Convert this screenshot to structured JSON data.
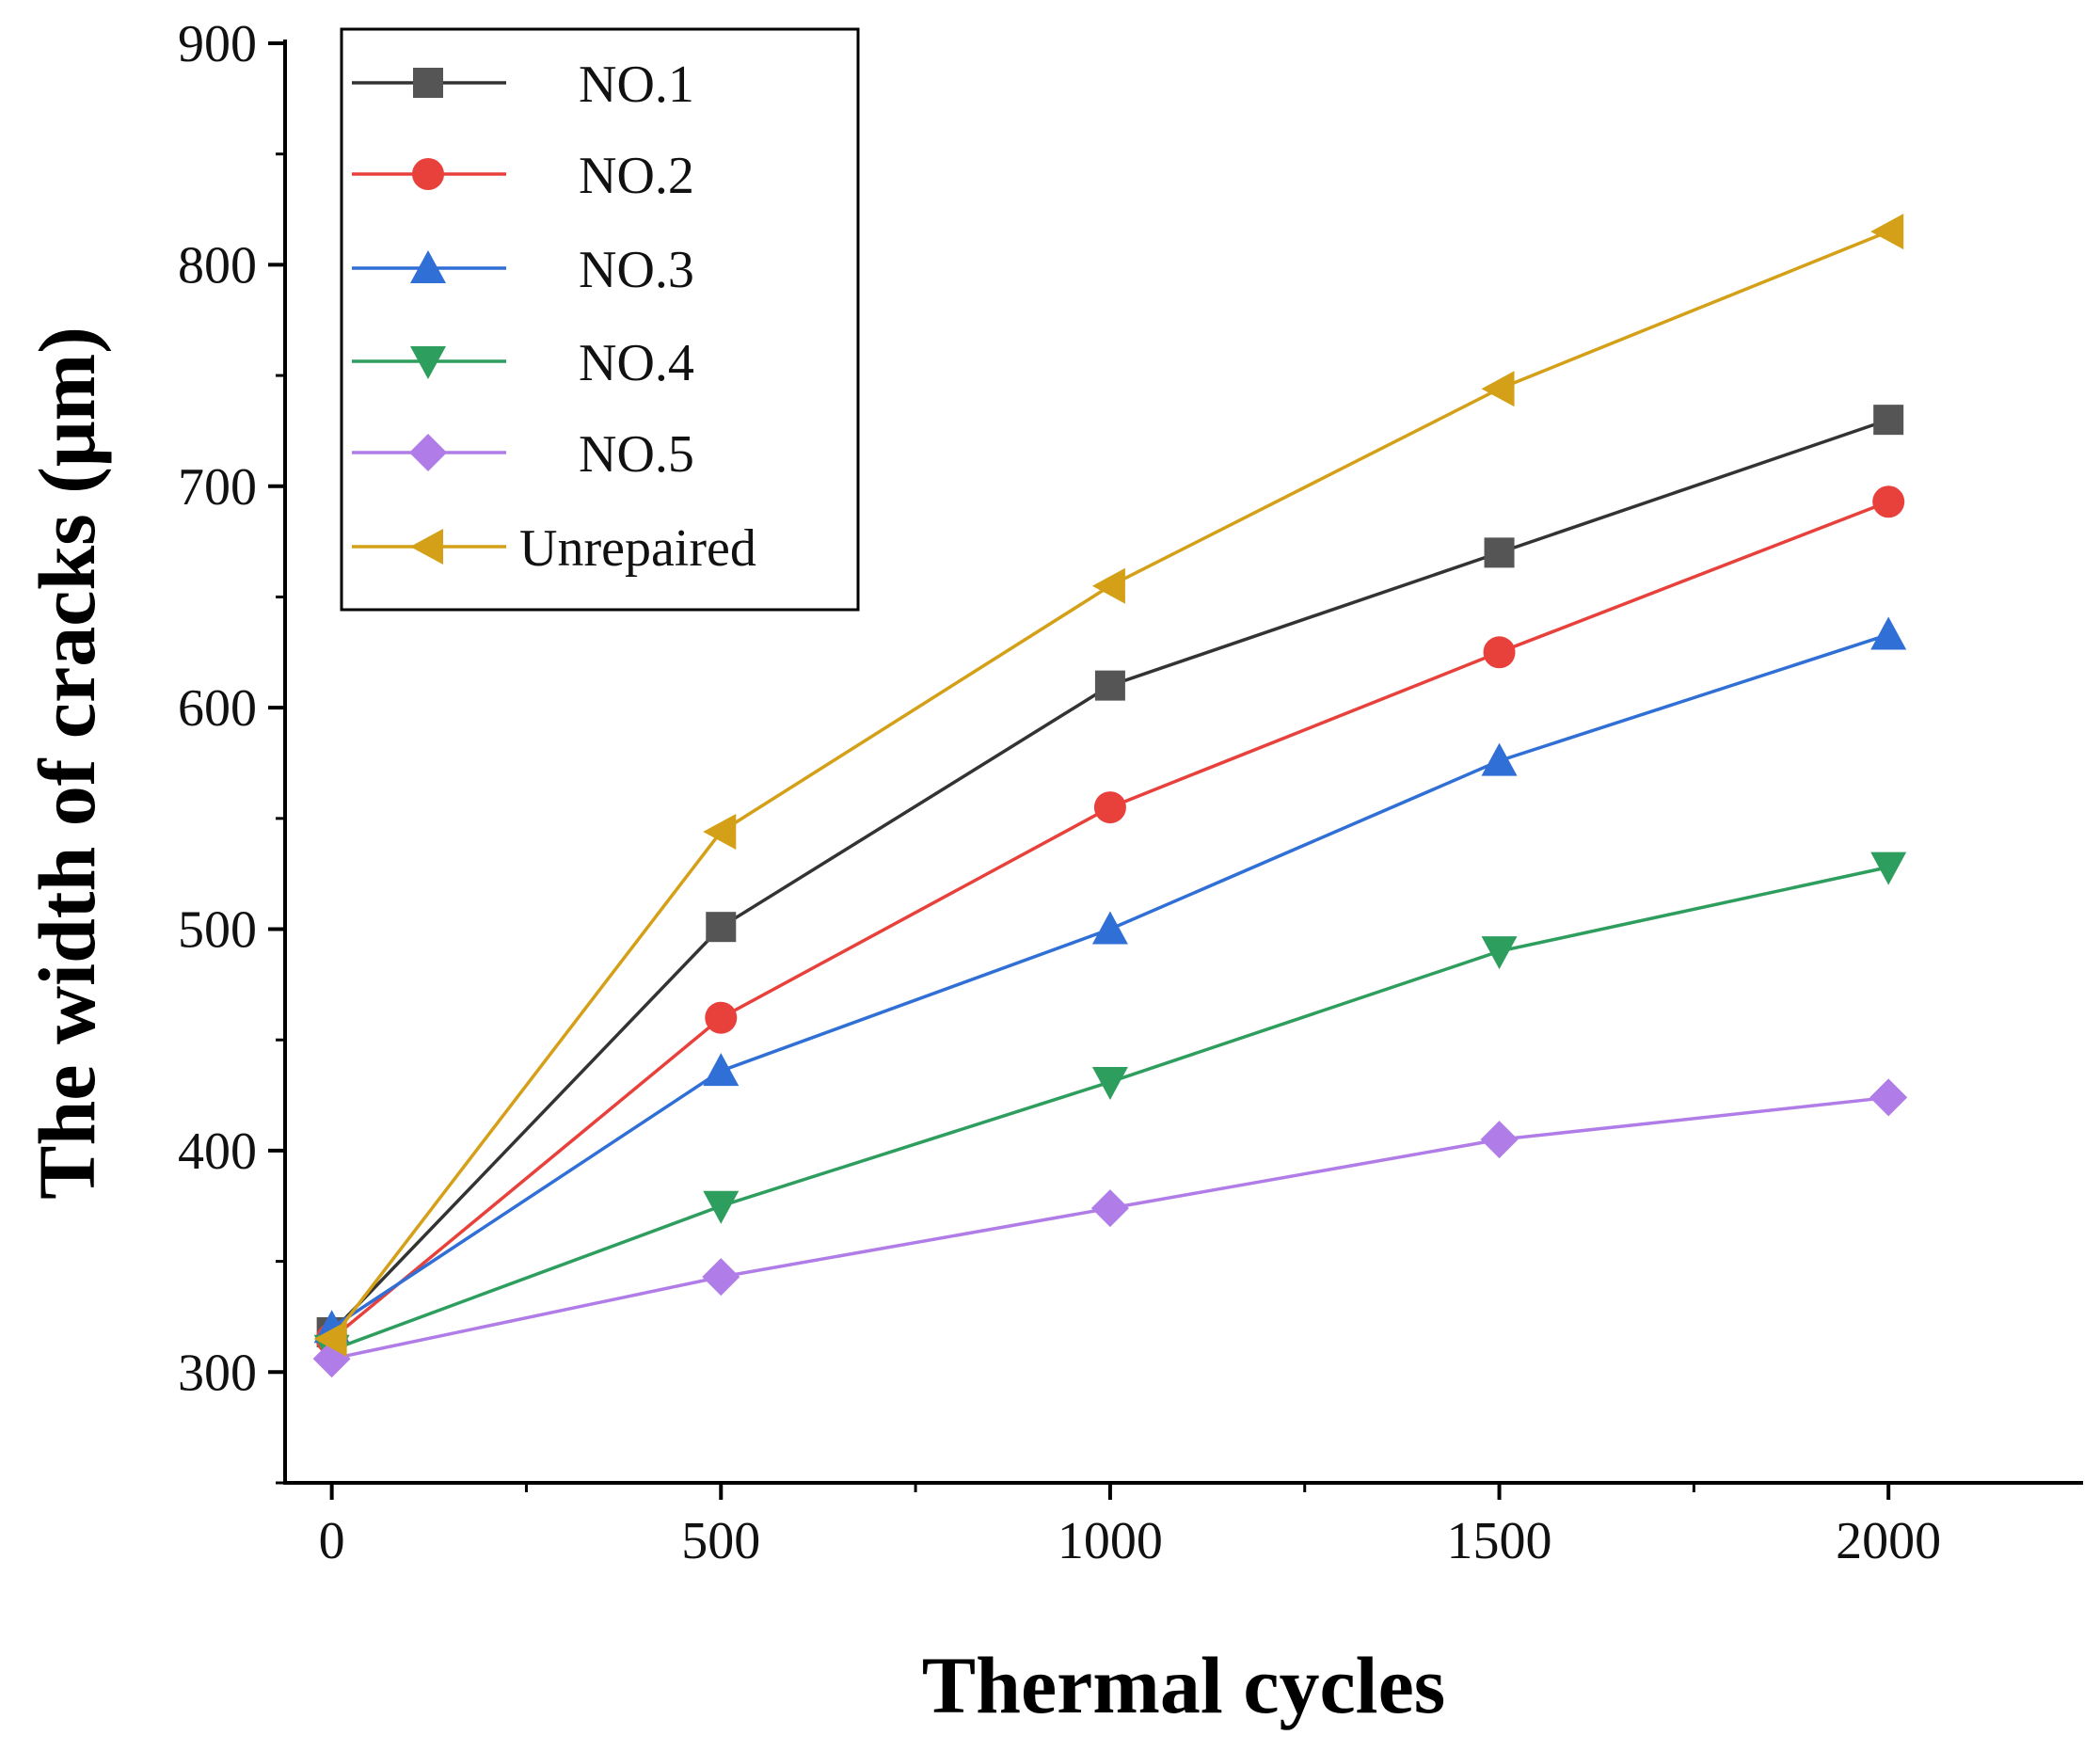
{
  "chart_data": {
    "type": "line",
    "title": "",
    "xlabel": "Thermal cycles",
    "ylabel": "The width of cracks (μm)",
    "xlim": [
      -60,
      2250
    ],
    "ylim": [
      250,
      900
    ],
    "x": [
      0,
      500,
      1000,
      1500,
      2000
    ],
    "xticks": [
      0,
      500,
      1000,
      1500,
      2000
    ],
    "xtick_labels": [
      "0",
      "500",
      "1000",
      "1500",
      "2000"
    ],
    "yticks": [
      300,
      400,
      500,
      600,
      700,
      800,
      900
    ],
    "ytick_labels": [
      "300",
      "400",
      "500",
      "600",
      "700",
      "800",
      "900"
    ],
    "grid": false,
    "legend_position": "top-left",
    "series": [
      {
        "name": "NO.1",
        "marker": "square",
        "color": "#555555",
        "values": [
          318,
          501,
          610,
          670,
          730
        ]
      },
      {
        "name": "NO.2",
        "marker": "circle",
        "color": "#e8413c",
        "values": [
          315,
          460,
          555,
          625,
          693
        ]
      },
      {
        "name": "NO.3",
        "marker": "triangle-up",
        "color": "#2f6fd6",
        "values": [
          320,
          436,
          500,
          576,
          633
        ]
      },
      {
        "name": "NO.4",
        "marker": "triangle-down",
        "color": "#2e9e5e",
        "values": [
          310,
          375,
          431,
          490,
          528
        ]
      },
      {
        "name": "NO.5",
        "marker": "diamond",
        "color": "#b07ce8",
        "values": [
          306,
          343,
          374,
          405,
          424
        ]
      },
      {
        "name": "Unrepaired",
        "marker": "triangle-left",
        "color": "#d4a017",
        "values": [
          315,
          544,
          655,
          744,
          815
        ]
      }
    ]
  }
}
